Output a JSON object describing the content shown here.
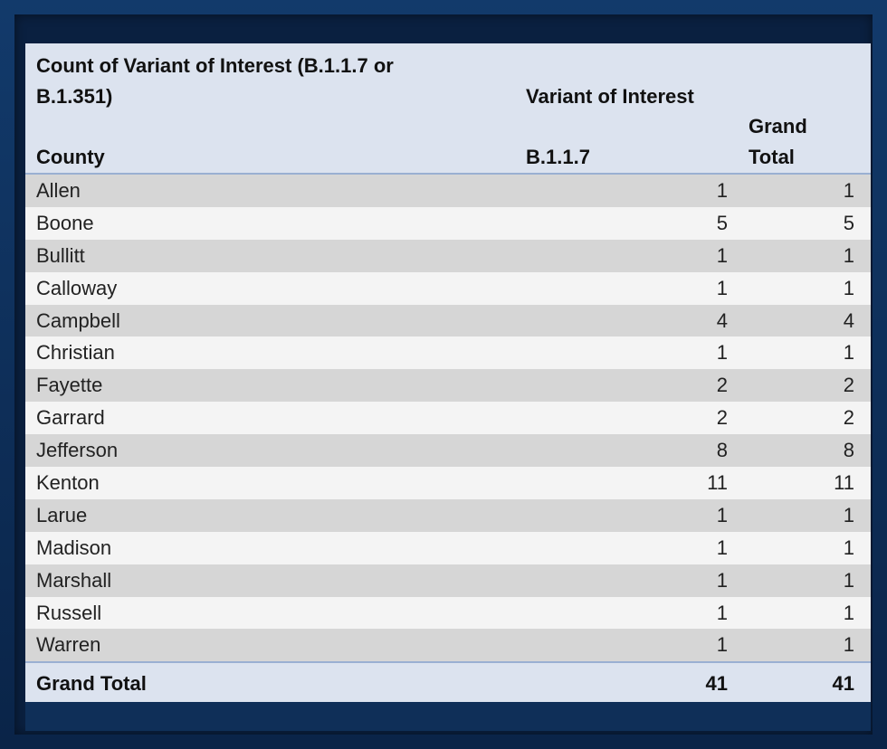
{
  "table": {
    "title": "Count of Variant of Interest (B.1.1.7 or B.1.351)",
    "title_line1": "Count of Variant of Interest (B.1.1.7 or",
    "title_line2": "B.1.351)",
    "column_group_label": "Variant of Interest",
    "grand_total_header_line1": "Grand",
    "grand_total_header_line2": "Total",
    "county_header": "County",
    "variant_header": "B.1.1.7",
    "rows": [
      {
        "county": "Allen",
        "b117": "1",
        "total": "1"
      },
      {
        "county": "Boone",
        "b117": "5",
        "total": "5"
      },
      {
        "county": "Bullitt",
        "b117": "1",
        "total": "1"
      },
      {
        "county": "Calloway",
        "b117": "1",
        "total": "1"
      },
      {
        "county": "Campbell",
        "b117": "4",
        "total": "4"
      },
      {
        "county": "Christian",
        "b117": "1",
        "total": "1"
      },
      {
        "county": "Fayette",
        "b117": "2",
        "total": "2"
      },
      {
        "county": "Garrard",
        "b117": "2",
        "total": "2"
      },
      {
        "county": "Jefferson",
        "b117": "8",
        "total": "8"
      },
      {
        "county": "Kenton",
        "b117": "11",
        "total": "11"
      },
      {
        "county": "Larue",
        "b117": "1",
        "total": "1"
      },
      {
        "county": "Madison",
        "b117": "1",
        "total": "1"
      },
      {
        "county": "Marshall",
        "b117": "1",
        "total": "1"
      },
      {
        "county": "Russell",
        "b117": "1",
        "total": "1"
      },
      {
        "county": "Warren",
        "b117": "1",
        "total": "1"
      }
    ],
    "grand_total_label": "Grand Total",
    "grand_total_b117": "41",
    "grand_total_total": "41"
  },
  "colors": {
    "header_bg": "#dce3ef",
    "row_odd": "#d6d6d6",
    "row_even": "#f4f4f4",
    "frame": "#0c2a52"
  }
}
